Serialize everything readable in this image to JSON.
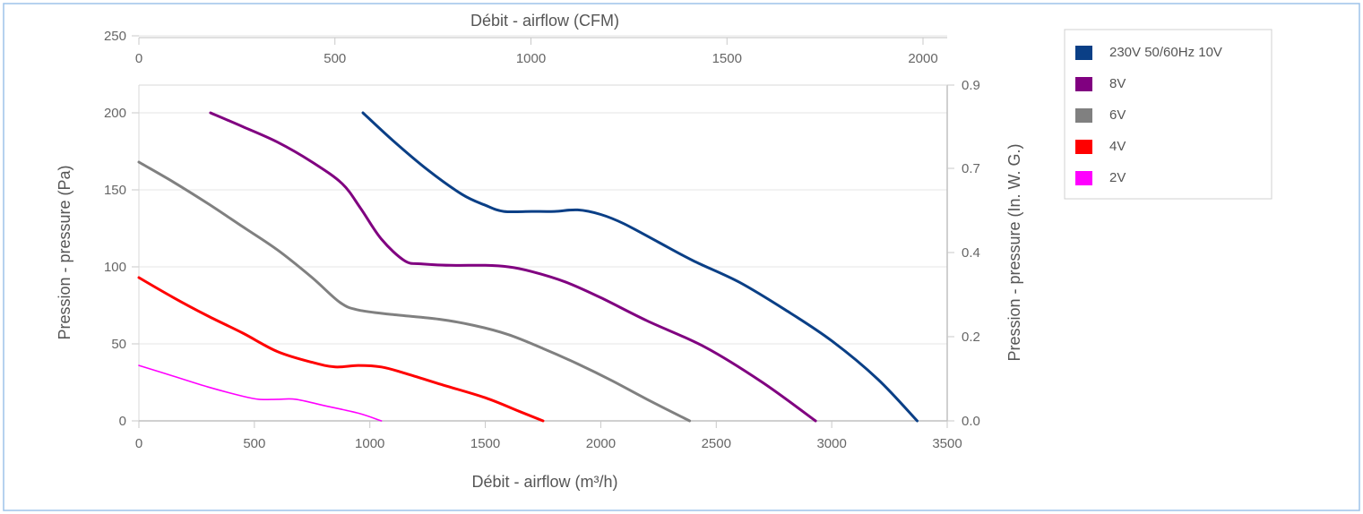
{
  "chart_data": {
    "type": "line",
    "x_top_label": "Débit - airflow (CFM)",
    "x_bottom_label": "Débit - airflow (m³/h)",
    "y_left_label": "Pression - pressure (Pa)",
    "y_right_label": "Pression - pressure (In. W. G.)",
    "x_bottom_ticks": [
      "0",
      "500",
      "1000",
      "1500",
      "2000",
      "2500",
      "3000",
      "3500"
    ],
    "x_top_ticks": [
      "0",
      "500",
      "1000",
      "1500",
      "2000"
    ],
    "y_left_ticks": [
      "0",
      "50",
      "100",
      "150",
      "200",
      "250"
    ],
    "y_right_ticks": [
      "0.0",
      "0.2",
      "0.4",
      "0.7",
      "0.9"
    ],
    "x_bottom_range": [
      0,
      3500
    ],
    "y_left_range": [
      0,
      250
    ],
    "legend_position": "top-right",
    "series": [
      {
        "name": "230V 50/60Hz 10V",
        "color": "#0a3f86",
        "x": [
          970,
          1100,
          1250,
          1400,
          1500,
          1580,
          1700,
          1800,
          1900,
          2000,
          2100,
          2250,
          2400,
          2600,
          2800,
          3000,
          3200,
          3370
        ],
        "y": [
          200,
          182,
          163,
          147,
          140,
          136,
          136,
          136,
          137,
          134,
          128,
          116,
          104,
          90,
          72,
          52,
          27,
          0
        ]
      },
      {
        "name": "8V",
        "color": "#800080",
        "x": [
          310,
          450,
          600,
          750,
          880,
          960,
          1050,
          1150,
          1220,
          1350,
          1500,
          1600,
          1700,
          1850,
          2000,
          2200,
          2450,
          2700,
          2930
        ],
        "y": [
          200,
          191,
          181,
          168,
          154,
          138,
          118,
          104,
          102,
          101,
          101,
          100,
          97,
          90,
          80,
          65,
          48,
          25,
          0
        ]
      },
      {
        "name": "6V",
        "color": "#808080",
        "x": [
          0,
          150,
          300,
          450,
          600,
          750,
          870,
          950,
          1100,
          1300,
          1450,
          1600,
          1750,
          1900,
          2050,
          2200,
          2385
        ],
        "y": [
          168,
          155,
          141,
          126,
          111,
          93,
          77,
          72,
          69,
          66,
          62,
          56,
          47,
          37,
          26,
          14,
          0
        ]
      },
      {
        "name": "4V",
        "color": "#ff0000",
        "x": [
          0,
          150,
          300,
          450,
          600,
          750,
          850,
          950,
          1050,
          1150,
          1300,
          1500,
          1650,
          1750
        ],
        "y": [
          93,
          80,
          68,
          57,
          45,
          38,
          35,
          36,
          35,
          31,
          24,
          15,
          6,
          0
        ]
      },
      {
        "name": "2V",
        "color": "#ff00ff",
        "x": [
          0,
          150,
          300,
          450,
          520,
          600,
          680,
          800,
          950,
          1050
        ],
        "y": [
          36,
          29,
          22,
          16,
          14,
          14,
          14,
          10,
          5,
          0
        ]
      }
    ]
  }
}
